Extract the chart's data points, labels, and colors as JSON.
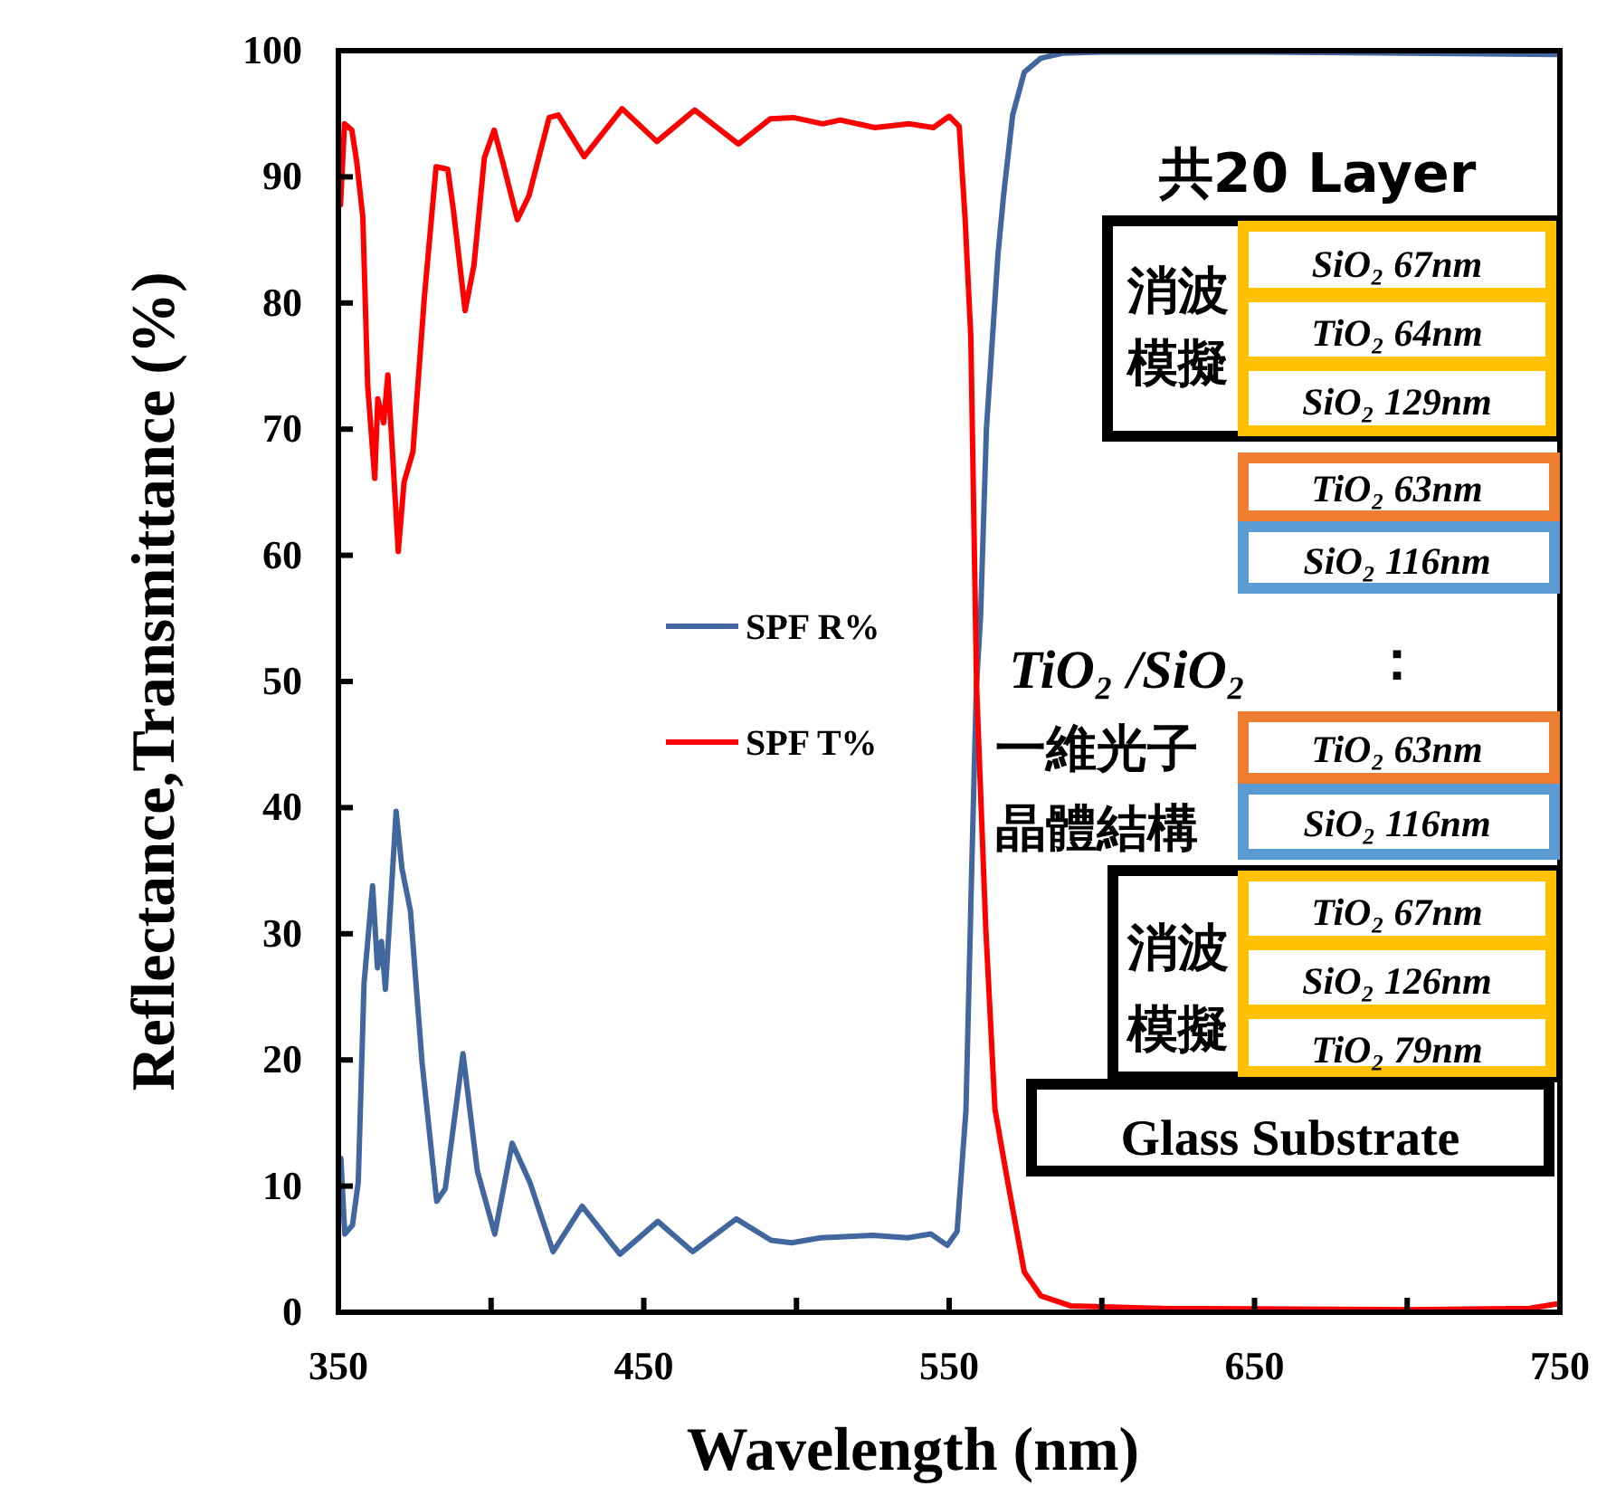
{
  "chart_data": {
    "type": "line",
    "xlabel": "Wavelength (nm)",
    "ylabel": "Reflectance,Transmittance (%)",
    "xlim": [
      350,
      750
    ],
    "ylim": [
      0,
      100
    ],
    "xticks": [
      350,
      {
        "value": 400,
        "label": null
      },
      450,
      {
        "value": 500,
        "label": null
      },
      550,
      {
        "value": 600,
        "label": null
      },
      650,
      {
        "value": 700,
        "label": null
      },
      750
    ],
    "yticks": [
      0,
      10,
      20,
      30,
      40,
      50,
      60,
      70,
      80,
      90,
      100
    ],
    "grid": false,
    "legend": "center",
    "line_style": "solid",
    "series": [
      {
        "name": "SPF R%",
        "color": "#41679e",
        "x": [
          350.8,
          352.1,
          354.6,
          356.5,
          358.4,
          361.2,
          362.8,
          364.1,
          365.4,
          366.6,
          368.9,
          370.8,
          373.6,
          377.4,
          382.2,
          385,
          390.8,
          395.5,
          401.2,
          406.9,
          412.7,
          420.3,
          429.8,
          442.2,
          454.6,
          466,
          480.3,
          491.7,
          498.4,
          507.9,
          525,
          536.4,
          544,
          549.4,
          552.6,
          555.5,
          557.4,
          558.9,
          560.3,
          562.2,
          566,
          567.9,
          570.8,
          574.6,
          580,
          587,
          600,
          650,
          700,
          750
        ],
        "values": [
          12.2,
          6.2,
          6.9,
          10.3,
          26.1,
          33.8,
          27.3,
          29.4,
          25.6,
          30.4,
          39.7,
          35.2,
          31.8,
          19.8,
          8.8,
          9.8,
          20.5,
          11.2,
          6.2,
          13.4,
          10.3,
          4.8,
          8.4,
          4.6,
          7.2,
          4.8,
          7.4,
          5.7,
          5.5,
          5.9,
          6.1,
          5.9,
          6.2,
          5.3,
          6.4,
          16,
          35.2,
          49.5,
          55.2,
          70,
          83.9,
          88.7,
          94.9,
          98.3,
          99.4,
          99.8,
          99.9,
          99.9,
          99.8,
          99.7
        ]
      },
      {
        "name": "SPF T%",
        "color": "#ff0000",
        "x": [
          350.7,
          352,
          354.4,
          356,
          358,
          359.6,
          361.9,
          362.9,
          364.8,
          366.2,
          367.7,
          369.6,
          371.5,
          374.4,
          378.2,
          382,
          385.8,
          387.7,
          391.5,
          394.4,
          397.8,
          401,
          403.9,
          408.6,
          412.4,
          419,
          422,
          430.5,
          442.9,
          454.3,
          466.7,
          481,
          491.4,
          499,
          508.6,
          514.3,
          525.7,
          537,
          544.8,
          550,
          553.3,
          555.2,
          557.1,
          559,
          562,
          565,
          568.9,
          574.6,
          580,
          590,
          620,
          700,
          740,
          750
        ],
        "values": [
          87.8,
          94.2,
          93.7,
          91.2,
          86.8,
          73.4,
          66.1,
          72.4,
          70.5,
          74.3,
          68.2,
          60.3,
          65.8,
          68.2,
          80.6,
          90.8,
          90.6,
          87.3,
          79.4,
          83,
          91.5,
          93.7,
          91.1,
          86.6,
          88.5,
          94.7,
          94.9,
          91.6,
          95.4,
          92.8,
          95.3,
          92.6,
          94.6,
          94.7,
          94.2,
          94.5,
          93.9,
          94.2,
          93.9,
          94.8,
          94,
          86.8,
          77.3,
          49.5,
          30.4,
          16.1,
          10.7,
          3.2,
          1.3,
          0.5,
          0.3,
          0.2,
          0.3,
          0.7
        ]
      }
    ],
    "annotations": [
      "共20 Layer",
      "消波",
      "模擬",
      "SiO₂ 67nm",
      "TiO₂ 64nm",
      "SiO₂ 129nm",
      "TiO₂ 63nm",
      "SiO₂ 116nm",
      "TiO₂ /SiO₂",
      "：",
      "一維光子",
      "晶體結構",
      "TiO₂ 63nm",
      "SiO₂ 116nm",
      "消波",
      "模擬",
      "TiO₂ 67nm",
      "SiO₂ 126nm",
      "TiO₂ 79nm",
      "Glass Substrate"
    ]
  }
}
